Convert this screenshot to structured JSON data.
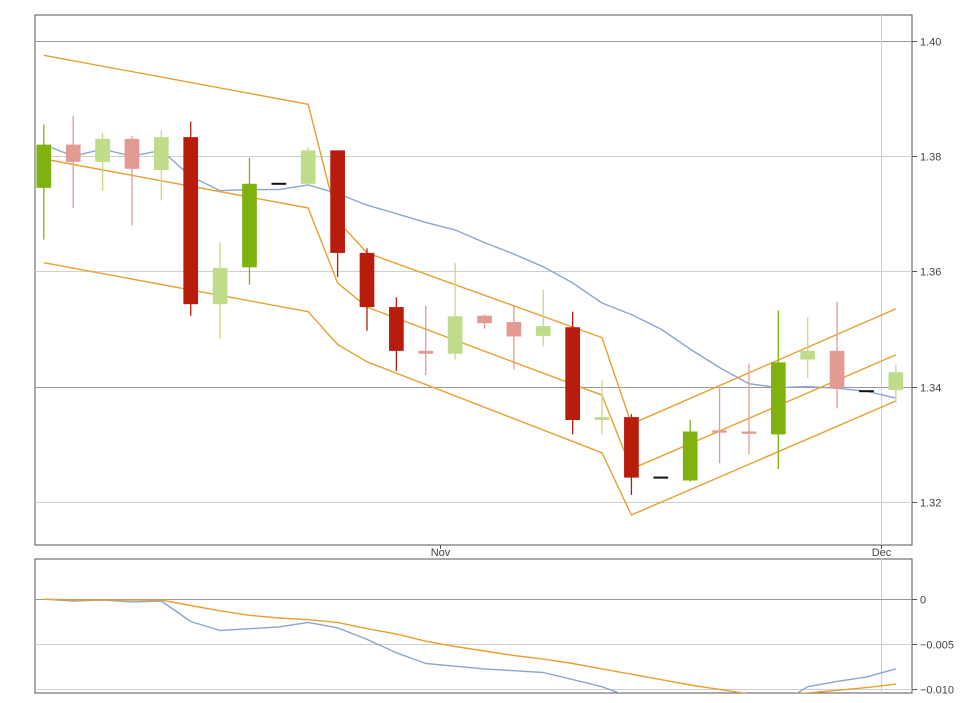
{
  "colors": {
    "up_strong": "#7fb20f",
    "up_light": "#bfdc8a",
    "down_strong": "#b71c0c",
    "down_light": "#e39a93",
    "neutral": "#111111",
    "channel": "#e8a032",
    "mid_line": "#8aa6d3",
    "osc_line_1": "#8aa6d3",
    "osc_line_2": "#e8a032"
  },
  "chart_data": [
    {
      "type": "candlestick",
      "title": "",
      "ylim": [
        1.3125,
        1.4045
      ],
      "yticks": [
        1.32,
        1.34,
        1.36,
        1.38,
        1.4
      ],
      "ytick_labels": [
        "1.32",
        "1.34",
        "1.36",
        "1.38",
        "1.40"
      ],
      "y_axis_side": "right",
      "xlim": [
        -0.3,
        29.55
      ],
      "xticks": [
        {
          "x": 13.5,
          "label": "Nov"
        },
        {
          "x": 28.5,
          "label": "Dec"
        }
      ],
      "candles": [
        {
          "i": 0,
          "open": 1.3745,
          "high": 1.3855,
          "low": 1.3655,
          "close": 1.382,
          "style": "up_strong"
        },
        {
          "i": 1,
          "open": 1.382,
          "high": 1.387,
          "low": 1.371,
          "close": 1.379,
          "style": "down_light"
        },
        {
          "i": 2,
          "open": 1.379,
          "high": 1.384,
          "low": 1.374,
          "close": 1.383,
          "style": "up_light"
        },
        {
          "i": 3,
          "open": 1.383,
          "high": 1.3835,
          "low": 1.368,
          "close": 1.3778,
          "style": "down_light"
        },
        {
          "i": 4,
          "open": 1.3776,
          "high": 1.3845,
          "low": 1.3723,
          "close": 1.3833,
          "style": "up_light"
        },
        {
          "i": 5,
          "open": 1.3833,
          "high": 1.386,
          "low": 1.3523,
          "close": 1.3543,
          "style": "down_strong"
        },
        {
          "i": 6,
          "open": 1.3543,
          "high": 1.365,
          "low": 1.3483,
          "close": 1.3606,
          "style": "up_light"
        },
        {
          "i": 7,
          "open": 1.3607,
          "high": 1.3797,
          "low": 1.3577,
          "close": 1.3752,
          "style": "up_strong"
        },
        {
          "i": 8,
          "open": 1.3752,
          "high": 1.3752,
          "low": 1.3752,
          "close": 1.3752,
          "style": "neutral"
        },
        {
          "i": 9,
          "open": 1.3752,
          "high": 1.3815,
          "low": 1.3752,
          "close": 1.381,
          "style": "up_light"
        },
        {
          "i": 10,
          "open": 1.381,
          "high": 1.381,
          "low": 1.359,
          "close": 1.3632,
          "style": "down_strong"
        },
        {
          "i": 11,
          "open": 1.3632,
          "high": 1.364,
          "low": 1.3497,
          "close": 1.3538,
          "style": "down_strong"
        },
        {
          "i": 12,
          "open": 1.3538,
          "high": 1.3555,
          "low": 1.3427,
          "close": 1.3462,
          "style": "down_strong"
        },
        {
          "i": 13,
          "open": 1.3462,
          "high": 1.354,
          "low": 1.342,
          "close": 1.3457,
          "style": "down_light"
        },
        {
          "i": 14,
          "open": 1.3457,
          "high": 1.3615,
          "low": 1.3447,
          "close": 1.3522,
          "style": "up_light"
        },
        {
          "i": 15,
          "open": 1.3523,
          "high": 1.3525,
          "low": 1.35,
          "close": 1.351,
          "style": "down_light"
        },
        {
          "i": 16,
          "open": 1.3512,
          "high": 1.354,
          "low": 1.343,
          "close": 1.3487,
          "style": "down_light"
        },
        {
          "i": 17,
          "open": 1.3488,
          "high": 1.3568,
          "low": 1.347,
          "close": 1.3505,
          "style": "up_light"
        },
        {
          "i": 18,
          "open": 1.3503,
          "high": 1.353,
          "low": 1.3317,
          "close": 1.3342,
          "style": "down_strong"
        },
        {
          "i": 19,
          "open": 1.3342,
          "high": 1.3412,
          "low": 1.3317,
          "close": 1.3347,
          "style": "up_light"
        },
        {
          "i": 20,
          "open": 1.3347,
          "high": 1.3352,
          "low": 1.3212,
          "close": 1.3242,
          "style": "down_strong"
        },
        {
          "i": 21,
          "open": 1.3242,
          "high": 1.3242,
          "low": 1.3242,
          "close": 1.3242,
          "style": "neutral"
        },
        {
          "i": 22,
          "open": 1.3237,
          "high": 1.3342,
          "low": 1.3235,
          "close": 1.3322,
          "style": "up_strong"
        },
        {
          "i": 23,
          "open": 1.3324,
          "high": 1.3397,
          "low": 1.3267,
          "close": 1.332,
          "style": "down_light"
        },
        {
          "i": 24,
          "open": 1.3322,
          "high": 1.344,
          "low": 1.3282,
          "close": 1.3318,
          "style": "down_light"
        },
        {
          "i": 25,
          "open": 1.3317,
          "high": 1.3532,
          "low": 1.3257,
          "close": 1.3442,
          "style": "up_strong"
        },
        {
          "i": 26,
          "open": 1.3447,
          "high": 1.352,
          "low": 1.3415,
          "close": 1.3462,
          "style": "up_light"
        },
        {
          "i": 27,
          "open": 1.3462,
          "high": 1.3547,
          "low": 1.3362,
          "close": 1.3397,
          "style": "down_light"
        },
        {
          "i": 28,
          "open": 1.3392,
          "high": 1.3392,
          "low": 1.3392,
          "close": 1.3392,
          "style": "neutral"
        },
        {
          "i": 29,
          "open": 1.3394,
          "high": 1.3438,
          "low": 1.3372,
          "close": 1.3425,
          "style": "up_light"
        }
      ],
      "series": [
        {
          "style": "mid_line",
          "x": [
            0,
            1,
            2,
            3,
            4,
            5,
            6,
            7,
            8,
            9,
            10,
            11,
            12,
            13,
            14,
            15,
            16,
            17,
            18,
            19,
            20,
            21,
            22,
            23,
            24,
            25,
            26,
            27,
            28,
            29
          ],
          "values": [
            1.382,
            1.38,
            1.3812,
            1.38,
            1.381,
            1.3765,
            1.374,
            1.3742,
            1.3742,
            1.375,
            1.3735,
            1.3715,
            1.37,
            1.3685,
            1.3672,
            1.365,
            1.363,
            1.3608,
            1.358,
            1.3545,
            1.3525,
            1.35,
            1.3465,
            1.3433,
            1.3405,
            1.3398,
            1.34,
            1.3397,
            1.3392,
            1.338
          ]
        },
        {
          "style": "channel",
          "x": [
            0,
            9,
            10,
            11,
            19,
            20,
            29
          ],
          "values": [
            1.3975,
            1.389,
            1.3688,
            1.3632,
            1.3485,
            1.3335,
            1.3535
          ]
        },
        {
          "style": "channel",
          "x": [
            0,
            9,
            10,
            11,
            19,
            20,
            29
          ],
          "values": [
            1.3795,
            1.371,
            1.358,
            1.3538,
            1.3385,
            1.3257,
            1.3455
          ]
        },
        {
          "style": "channel",
          "x": [
            0,
            9,
            10,
            11,
            19,
            20,
            29
          ],
          "values": [
            1.3615,
            1.353,
            1.3473,
            1.3443,
            1.3285,
            1.3177,
            1.3375
          ]
        }
      ]
    },
    {
      "type": "line",
      "title": "",
      "ylim": [
        -0.0105,
        0.0045
      ],
      "yticks": [
        0,
        -0.005,
        -0.01
      ],
      "ytick_labels": [
        "0",
        "−0.005",
        "−0.010"
      ],
      "y_axis_side": "right",
      "xlim": [
        -0.3,
        29.55
      ],
      "series": [
        {
          "style": "osc_line_1",
          "x": [
            0,
            1,
            2,
            3,
            4,
            5,
            6,
            7,
            8,
            9,
            10,
            11,
            12,
            13,
            14,
            15,
            16,
            17,
            18,
            19,
            20,
            21,
            22,
            23,
            24,
            25,
            26,
            27,
            28,
            29
          ],
          "values": [
            0.0,
            -0.0002,
            -0.0001,
            -0.0003,
            -0.0002,
            -0.0025,
            -0.0035,
            -0.0033,
            -0.0031,
            -0.0026,
            -0.0032,
            -0.0045,
            -0.006,
            -0.0072,
            -0.0075,
            -0.0078,
            -0.008,
            -0.0082,
            -0.009,
            -0.0098,
            -0.011,
            -0.0118,
            -0.0125,
            -0.0128,
            -0.013,
            -0.0118,
            -0.0098,
            -0.0092,
            -0.0087,
            -0.0078
          ]
        },
        {
          "style": "osc_line_2",
          "x": [
            0,
            1,
            2,
            3,
            4,
            5,
            6,
            7,
            8,
            9,
            10,
            11,
            12,
            13,
            14,
            15,
            16,
            17,
            18,
            19,
            20,
            21,
            22,
            23,
            24,
            25,
            26,
            27,
            28,
            29
          ],
          "values": [
            0.0,
            -0.0001,
            -0.0001,
            -0.0001,
            -0.0001,
            -0.0007,
            -0.0013,
            -0.0018,
            -0.0021,
            -0.0023,
            -0.0026,
            -0.0033,
            -0.0039,
            -0.0047,
            -0.0053,
            -0.0058,
            -0.0063,
            -0.0067,
            -0.0072,
            -0.0078,
            -0.0084,
            -0.009,
            -0.0096,
            -0.0101,
            -0.0106,
            -0.0107,
            -0.0105,
            -0.0102,
            -0.0099,
            -0.0095
          ]
        }
      ]
    }
  ]
}
